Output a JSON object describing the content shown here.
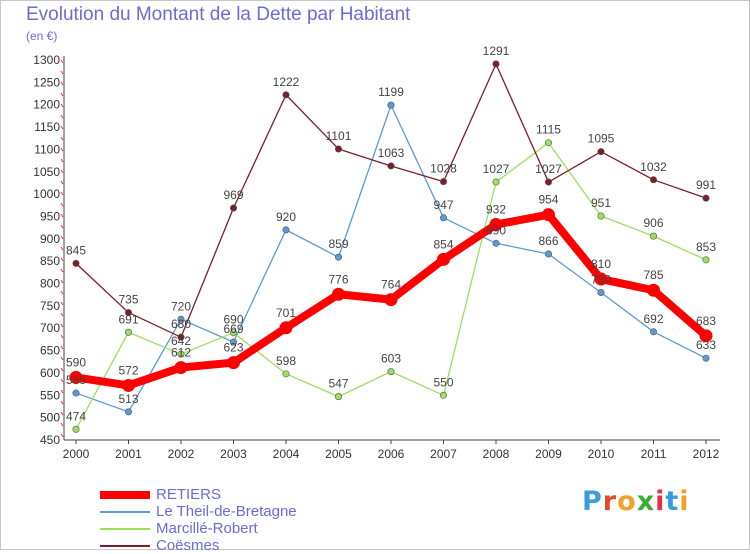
{
  "title": "Evolution du Montant de la Dette par Habitant",
  "subtitle": "(en €)",
  "logo": {
    "text": "Proxiti",
    "letter_colors": [
      "#3a9be0",
      "#e04a2a",
      "#f2a02a",
      "#3aaa3a",
      "#e0304a",
      "#3a9be0",
      "#f2a02a"
    ]
  },
  "chart_data": {
    "type": "line",
    "title": "Evolution du Montant de la Dette par Habitant",
    "unit": "(en €)",
    "x": [
      2000,
      2001,
      2002,
      2003,
      2004,
      2005,
      2006,
      2007,
      2008,
      2009,
      2010,
      2011,
      2012
    ],
    "ylim": [
      450,
      1300
    ],
    "yticks": [
      450,
      500,
      550,
      600,
      650,
      700,
      750,
      800,
      850,
      900,
      950,
      1000,
      1050,
      1100,
      1150,
      1200,
      1250,
      1300
    ],
    "grid": false,
    "legend_position": "bottom-left",
    "series": [
      {
        "name": "RETIERS",
        "color": "#ff0000",
        "emphasis": true,
        "values": [
          590,
          572,
          612,
          623,
          701,
          776,
          764,
          854,
          932,
          954,
          810,
          785,
          683
        ]
      },
      {
        "name": "Le Theil-de-Bretagne",
        "color": "#5a9ad6",
        "emphasis": false,
        "values": [
          555,
          513,
          720,
          669,
          920,
          859,
          1199,
          947,
          890,
          866,
          780,
          692,
          633
        ]
      },
      {
        "name": "Marcillé-Robert",
        "color": "#99e05f",
        "emphasis": false,
        "values": [
          474,
          691,
          642,
          690,
          598,
          547,
          603,
          550,
          1027,
          1115,
          951,
          906,
          853
        ]
      },
      {
        "name": "Coësmes",
        "color": "#7a1f2a",
        "emphasis": false,
        "values": [
          845,
          735,
          680,
          969,
          1222,
          1101,
          1063,
          1028,
          1291,
          1027,
          1095,
          1032,
          991
        ]
      }
    ],
    "labels": {
      "RETIERS": [
        "590",
        "572",
        "612",
        "623",
        "701",
        "776",
        "764",
        "854",
        "932",
        "954",
        "810",
        "785",
        "683"
      ],
      "Le Theil-de-Bretagne": [
        "555",
        "513",
        "720",
        "669",
        "920",
        "859",
        "1199",
        "947",
        "890",
        "866",
        "780",
        "692",
        "633"
      ],
      "Marcillé-Robert": [
        "474",
        "691",
        "642",
        "690",
        "598",
        "547",
        "603",
        "550",
        "1027",
        "1115",
        "951",
        "906",
        "853"
      ],
      "Coësmes": [
        "845",
        "735",
        "680",
        "969",
        "1222",
        "1101",
        "1063",
        "1028",
        "1291",
        "1027",
        "1095",
        "1032",
        "991"
      ]
    }
  }
}
